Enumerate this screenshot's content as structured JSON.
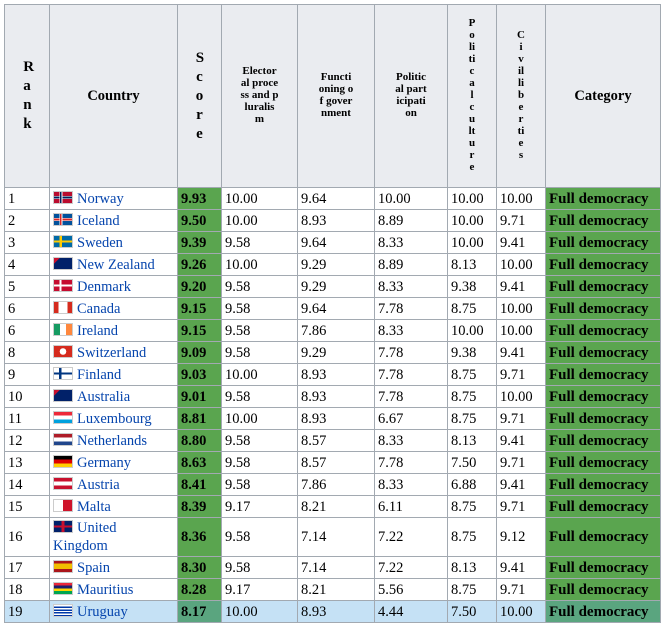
{
  "table": {
    "header": [
      "Rank",
      "Country",
      "Score",
      "Electoral process and pluralism",
      "Functioning of government",
      "Political participation",
      "Political culture",
      "Civil liberties",
      "Category"
    ],
    "rows": [
      [
        "1",
        "Norway",
        "9.93",
        "10.00",
        "9.64",
        "10.00",
        "10.00",
        "10.00",
        "Full democracy"
      ],
      [
        "2",
        "Iceland",
        "9.50",
        "10.00",
        "8.93",
        "8.89",
        "10.00",
        "9.71",
        "Full democracy"
      ],
      [
        "3",
        "Sweden",
        "9.39",
        "9.58",
        "9.64",
        "8.33",
        "10.00",
        "9.41",
        "Full democracy"
      ],
      [
        "4",
        "New Zealand",
        "9.26",
        "10.00",
        "9.29",
        "8.89",
        "8.13",
        "10.00",
        "Full democracy"
      ],
      [
        "5",
        "Denmark",
        "9.20",
        "9.58",
        "9.29",
        "8.33",
        "9.38",
        "9.41",
        "Full democracy"
      ],
      [
        "6",
        "Canada",
        "9.15",
        "9.58",
        "9.64",
        "7.78",
        "8.75",
        "10.00",
        "Full democracy"
      ],
      [
        "6",
        "Ireland",
        "9.15",
        "9.58",
        "7.86",
        "8.33",
        "10.00",
        "10.00",
        "Full democracy"
      ],
      [
        "8",
        "Switzerland",
        "9.09",
        "9.58",
        "9.29",
        "7.78",
        "9.38",
        "9.41",
        "Full democracy"
      ],
      [
        "9",
        "Finland",
        "9.03",
        "10.00",
        "8.93",
        "7.78",
        "8.75",
        "9.71",
        "Full democracy"
      ],
      [
        "10",
        "Australia",
        "9.01",
        "9.58",
        "8.93",
        "7.78",
        "8.75",
        "10.00",
        "Full democracy"
      ],
      [
        "11",
        "Luxembourg",
        "8.81",
        "10.00",
        "8.93",
        "6.67",
        "8.75",
        "9.71",
        "Full democracy"
      ],
      [
        "12",
        "Netherlands",
        "8.80",
        "9.58",
        "8.57",
        "8.33",
        "8.13",
        "9.41",
        "Full democracy"
      ],
      [
        "13",
        "Germany",
        "8.63",
        "9.58",
        "8.57",
        "7.78",
        "7.50",
        "9.71",
        "Full democracy"
      ],
      [
        "14",
        "Austria",
        "8.41",
        "9.58",
        "7.86",
        "8.33",
        "6.88",
        "9.41",
        "Full democracy"
      ],
      [
        "15",
        "Malta",
        "8.39",
        "9.17",
        "8.21",
        "6.11",
        "8.75",
        "9.71",
        "Full democracy"
      ],
      [
        "16",
        "United Kingdom",
        "8.36",
        "9.58",
        "7.14",
        "7.22",
        "8.75",
        "9.12",
        "Full democracy"
      ],
      [
        "17",
        "Spain",
        "8.30",
        "9.58",
        "7.14",
        "7.22",
        "8.13",
        "9.41",
        "Full democracy"
      ],
      [
        "18",
        "Mauritius",
        "8.28",
        "9.17",
        "8.21",
        "5.56",
        "8.75",
        "9.71",
        "Full democracy"
      ],
      [
        "19",
        "Uruguay",
        "8.17",
        "10.00",
        "8.93",
        "4.44",
        "7.50",
        "10.00",
        "Full democracy"
      ]
    ]
  }
}
